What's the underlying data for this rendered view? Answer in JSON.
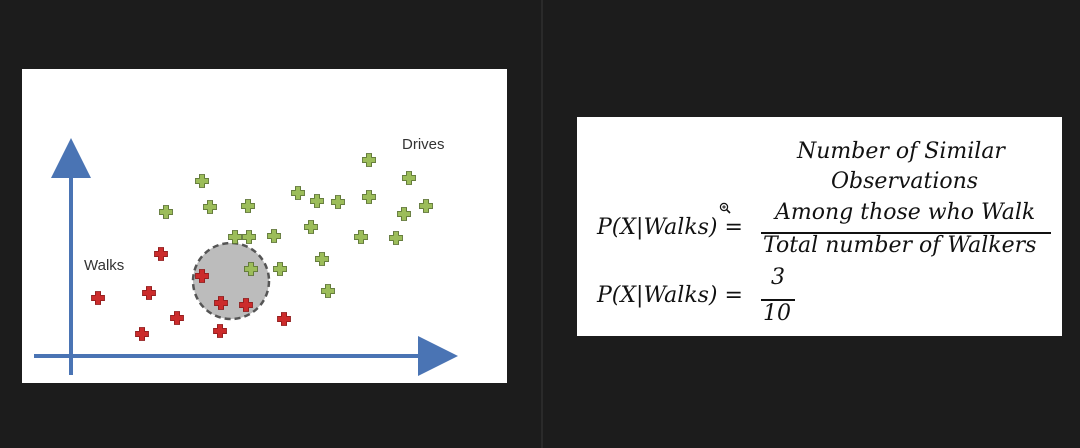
{
  "plot": {
    "label_walks": "Walks",
    "label_drives": "Drives",
    "colors": {
      "axis": "#4a74b4",
      "walk_marker": "#cc2b2b",
      "drive_marker": "#9cbd5a",
      "circle_fill": "#bcbcbc"
    },
    "points_walk_count": 10,
    "points_drive_count": 22
  },
  "formula": {
    "lhs_1": "P(X|Walks) =",
    "numerator_line1": "Number of Similar",
    "numerator_line2": "Observations",
    "numerator_line3": "Among those who Walk",
    "denominator": "Total number of Walkers",
    "lhs_2": "P(X|Walks) =",
    "frac_numerator": "3",
    "frac_denominator": "10"
  }
}
